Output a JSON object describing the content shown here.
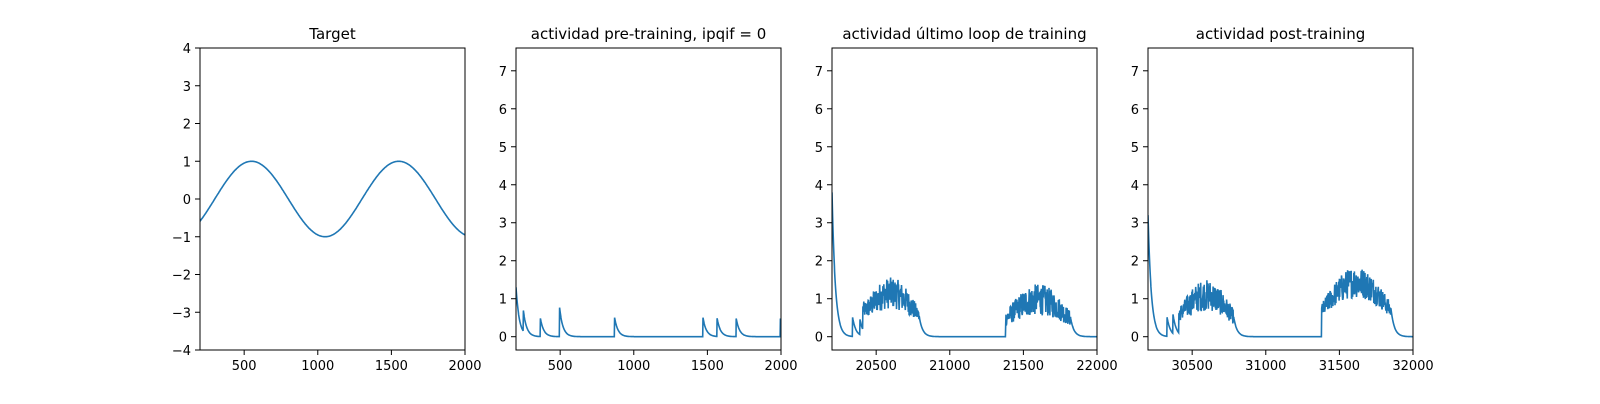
{
  "chart_data": [
    {
      "type": "line",
      "title": "Target",
      "xlim": [
        200,
        2000
      ],
      "ylim": [
        -4,
        4
      ],
      "xticks": [
        500,
        1000,
        1500,
        2000
      ],
      "yticks": [
        -4,
        -3,
        -2,
        -1,
        0,
        1,
        2,
        3,
        4
      ],
      "series": [
        {
          "color": "#1f77b4",
          "kind": "sine",
          "amplitude": 1.0,
          "period": 1000,
          "peak_x": 550
        }
      ]
    },
    {
      "type": "line",
      "title": "actividad pre-training, ipqif = 0",
      "xlim": [
        200,
        2000
      ],
      "ylim": [
        -0.35,
        7.6
      ],
      "xticks": [
        500,
        1000,
        1500,
        2000
      ],
      "yticks": [
        0,
        1,
        2,
        3,
        4,
        5,
        6,
        7
      ],
      "series": [
        {
          "color": "#1f77b4",
          "kind": "spikes",
          "baseline": 0.0,
          "start_value": 1.3,
          "spikes": [
            [
              250,
              0.55
            ],
            [
              365,
              0.5
            ],
            [
              495,
              0.8
            ],
            [
              870,
              0.5
            ],
            [
              1470,
              0.5
            ],
            [
              1565,
              0.5
            ],
            [
              1695,
              0.5
            ],
            [
              1995,
              0.5
            ]
          ]
        }
      ]
    },
    {
      "type": "line",
      "title": "actividad último loop de training",
      "xlim": [
        20200,
        22000
      ],
      "ylim": [
        -0.35,
        7.6
      ],
      "xticks": [
        20500,
        21000,
        21500,
        22000
      ],
      "yticks": [
        0,
        1,
        2,
        3,
        4,
        5,
        6,
        7
      ],
      "series": [
        {
          "color": "#1f77b4",
          "kind": "bursts",
          "baseline": 0.0,
          "start_value": 3.8,
          "spikes": [
            [
              20340,
              0.5
            ],
            [
              20390,
              0.4
            ]
          ],
          "bursts": [
            [
              20410,
              20790,
              1.0
            ],
            [
              21380,
              21820,
              0.85
            ]
          ]
        }
      ]
    },
    {
      "type": "line",
      "title": "actividad post-training",
      "xlim": [
        30200,
        32000
      ],
      "ylim": [
        -0.35,
        7.6
      ],
      "xticks": [
        30500,
        31000,
        31500,
        32000
      ],
      "yticks": [
        0,
        1,
        2,
        3,
        4,
        5,
        6,
        7
      ],
      "series": [
        {
          "color": "#1f77b4",
          "kind": "bursts",
          "baseline": 0.0,
          "start_value": 3.2,
          "spikes": [
            [
              30330,
              0.5
            ],
            [
              30370,
              0.5
            ]
          ],
          "bursts": [
            [
              30410,
              30780,
              0.95
            ],
            [
              31380,
              31850,
              1.25
            ]
          ]
        }
      ]
    }
  ]
}
